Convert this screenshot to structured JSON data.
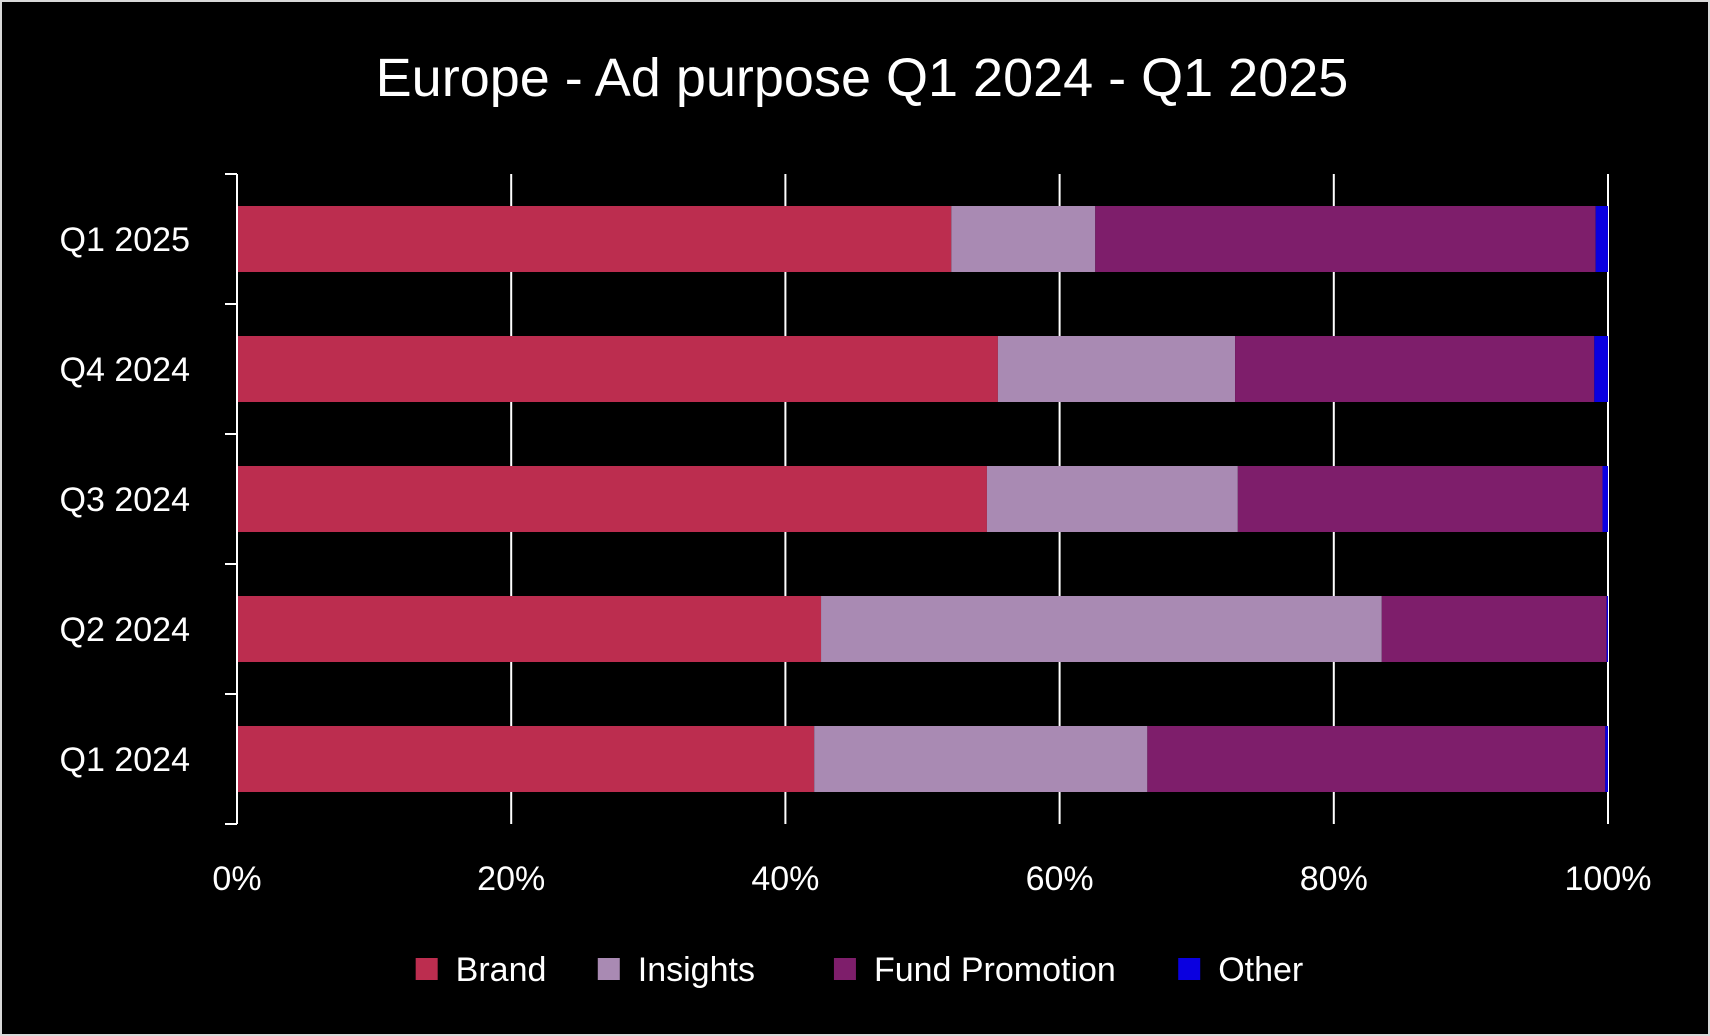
{
  "chart_data": {
    "type": "bar",
    "orientation": "horizontal",
    "stacked": "percent",
    "title": "Europe - Ad purpose Q1 2024 - Q1 2025",
    "xlabel": "",
    "ylabel": "",
    "xlim": [
      0,
      100
    ],
    "x_ticks": [
      "0%",
      "20%",
      "40%",
      "60%",
      "80%",
      "100%"
    ],
    "grid": true,
    "legend_position": "bottom",
    "categories": [
      "Q1 2025",
      "Q4 2024",
      "Q3 2024",
      "Q2 2024",
      "Q1 2024"
    ],
    "series": [
      {
        "name": "Brand",
        "color": "#bc2d4f",
        "values": [
          52.1,
          55.5,
          54.7,
          42.6,
          42.1
        ]
      },
      {
        "name": "Insights",
        "color": "#a98ab3",
        "values": [
          10.5,
          17.3,
          18.3,
          40.9,
          24.3
        ]
      },
      {
        "name": "Fund Promotion",
        "color": "#7e1e6b",
        "values": [
          36.5,
          26.2,
          26.6,
          16.4,
          33.4
        ]
      },
      {
        "name": "Other",
        "color": "#0a00e0",
        "values": [
          0.9,
          1.0,
          0.4,
          0.1,
          0.2
        ]
      }
    ]
  }
}
